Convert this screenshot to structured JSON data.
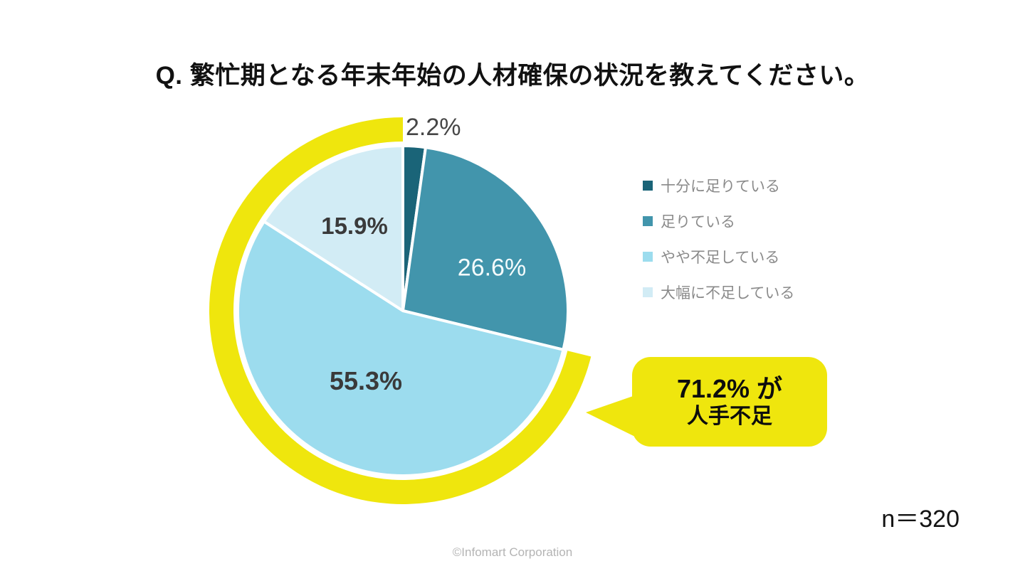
{
  "title": "Q. 繁忙期となる年末年始の人材確保の状況を教えてください。",
  "sample_size": "n＝320",
  "footer": {
    "copyright": "©Infomart Corporation"
  },
  "chart_data": {
    "type": "pie",
    "title": "Q. 繁忙期となる年末年始の人材確保の状況を教えてください。",
    "direction": "clockwise",
    "start_angle_deg": 0,
    "legend_position": "right",
    "slices": [
      {
        "label": "十分に足りている",
        "value": 2.2,
        "display": "2.2%",
        "color": "#1a6478"
      },
      {
        "label": "足りている",
        "value": 26.6,
        "display": "26.6%",
        "color": "#4295ac"
      },
      {
        "label": "やや不足している",
        "value": 55.3,
        "display": "55.3%",
        "color": "#9cdcee"
      },
      {
        "label": "大幅に不足している",
        "value": 15.9,
        "display": "15.9%",
        "color": "#d2ecf5"
      }
    ],
    "highlight_ring": {
      "covers": [
        "やや不足している",
        "大幅に不足している"
      ],
      "total_value": 71.2,
      "color": "#efe60d"
    },
    "annotation": {
      "line1": "71.2% が",
      "line2": "人手不足"
    },
    "sample_size": "n＝320"
  }
}
